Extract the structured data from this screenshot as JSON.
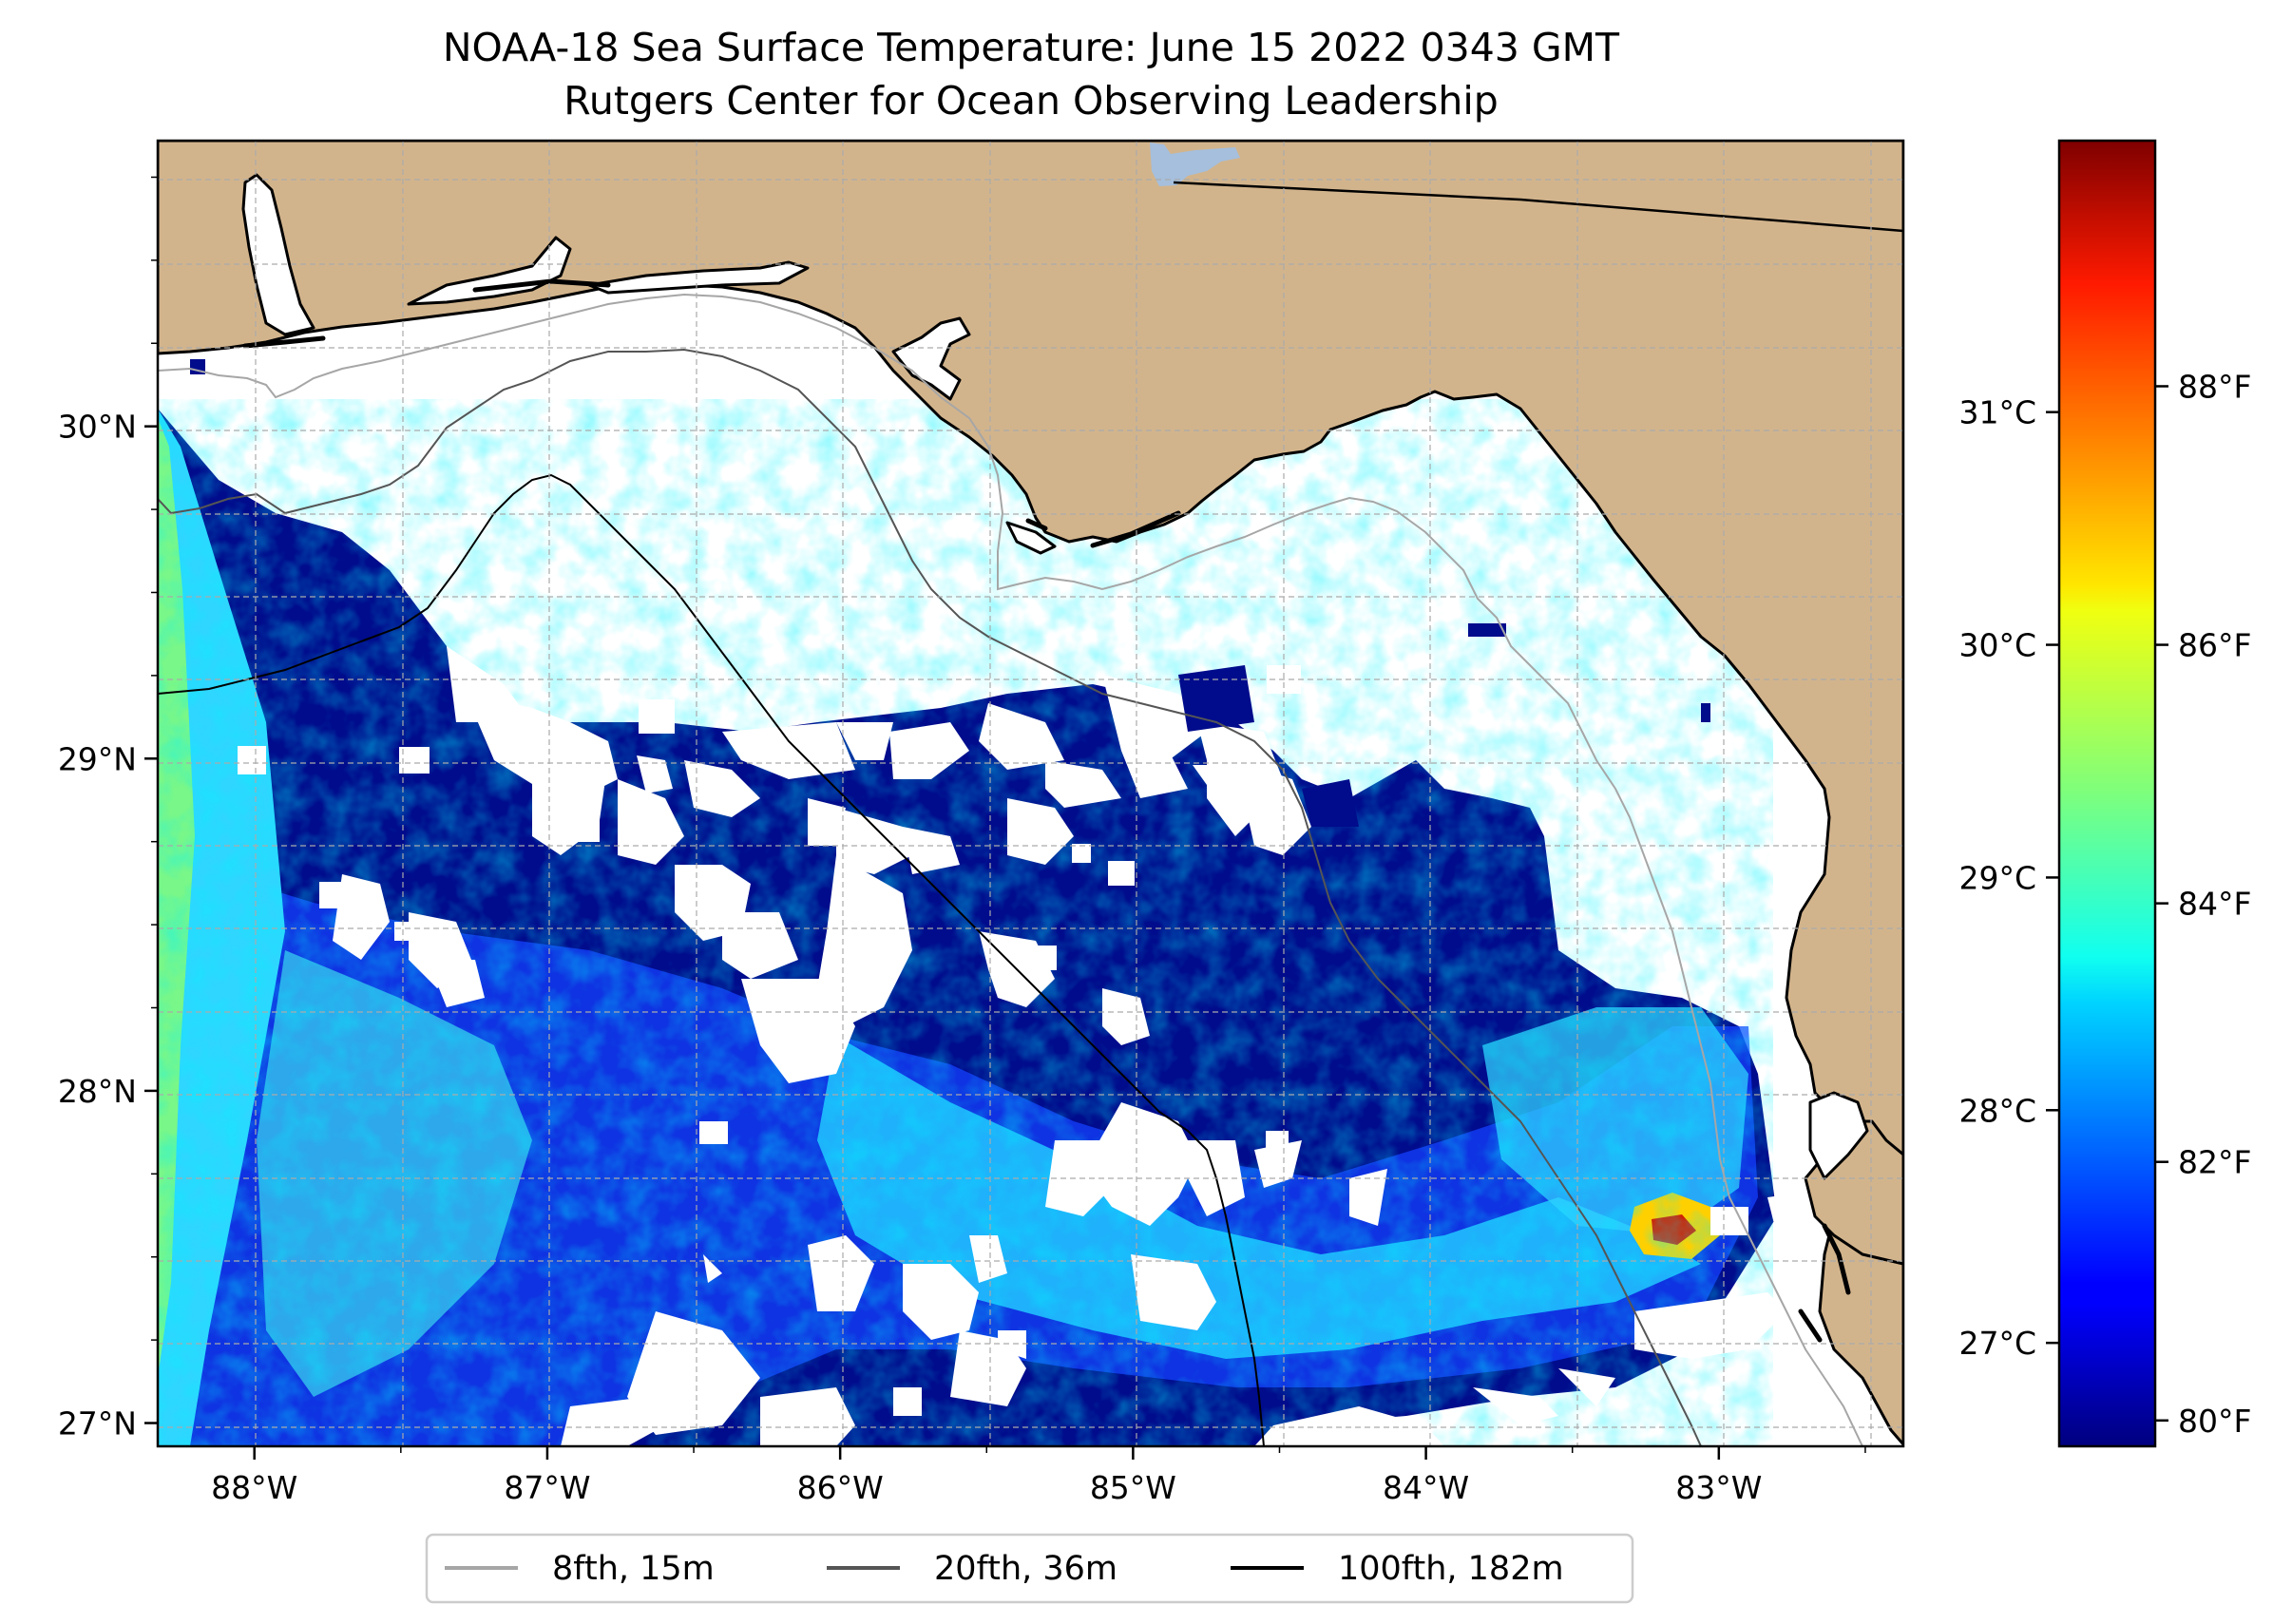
{
  "title": {
    "line1": "NOAA-18 Sea Surface Temperature: June 15 2022 0343 GMT",
    "line2": "Rutgers Center for Ocean Observing Leadership"
  },
  "map": {
    "lon_range": [
      -88.33,
      -82.37
    ],
    "lat_range": [
      26.93,
      30.86
    ],
    "lon_ticks": [
      {
        "value": -88,
        "label": "88°W"
      },
      {
        "value": -87,
        "label": "87°W"
      },
      {
        "value": -86,
        "label": "86°W"
      },
      {
        "value": -85,
        "label": "85°W"
      },
      {
        "value": -84,
        "label": "84°W"
      },
      {
        "value": -83,
        "label": "83°W"
      }
    ],
    "lat_ticks": [
      {
        "value": 30,
        "label": "30°N"
      },
      {
        "value": 29,
        "label": "29°N"
      },
      {
        "value": 28,
        "label": "28°N"
      },
      {
        "value": 27,
        "label": "27°N"
      }
    ],
    "colors": {
      "land": "#d2b48c",
      "no_data": "#ffffff",
      "lake": "#a5bfdd",
      "grid": "#b0b0b0"
    }
  },
  "colorbar": {
    "colormap": "jet",
    "range_f": [
      79.8,
      89.9
    ],
    "celsius_ticks": [
      {
        "value": 31,
        "label": "31°C"
      },
      {
        "value": 30,
        "label": "30°C"
      },
      {
        "value": 29,
        "label": "29°C"
      },
      {
        "value": 28,
        "label": "28°C"
      },
      {
        "value": 27,
        "label": "27°C"
      }
    ],
    "fahrenheit_ticks": [
      {
        "value": 88,
        "label": "88°F"
      },
      {
        "value": 86,
        "label": "86°F"
      },
      {
        "value": 84,
        "label": "84°F"
      },
      {
        "value": 82,
        "label": "82°F"
      },
      {
        "value": 80,
        "label": "80°F"
      }
    ]
  },
  "legend": {
    "items": [
      {
        "label": "8fth, 15m",
        "color": "#a6a6a6"
      },
      {
        "label": "20fth, 36m",
        "color": "#555555"
      },
      {
        "label": "100fth, 182m",
        "color": "#000000"
      }
    ]
  }
}
